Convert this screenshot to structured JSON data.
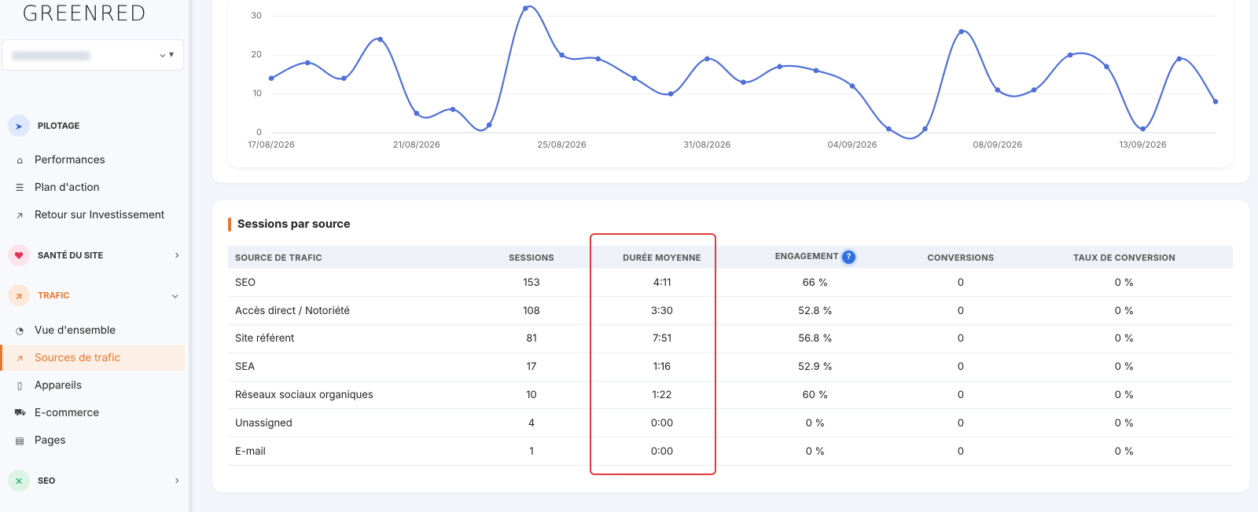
{
  "sidebar": {
    "logo": "GREENRED",
    "sections": [
      {
        "label": "PILOTAGE",
        "items": [
          "Performances",
          "Plan d'action",
          "Retour sur Investissement"
        ]
      },
      {
        "label": "SANTÉ DU SITE",
        "items": []
      },
      {
        "label": "TRAFIC",
        "items": [
          "Vue d'ensemble",
          "Sources de trafic",
          "Appareils",
          "E-commerce",
          "Pages"
        ]
      },
      {
        "label": "SEO",
        "items": []
      }
    ]
  },
  "chart_data": {
    "type": "line",
    "categories": [
      "17/08/2026",
      null,
      null,
      null,
      "21/08/2026",
      null,
      null,
      null,
      "25/08/2026",
      null,
      null,
      null,
      "31/08/2026",
      null,
      null,
      null,
      "04/09/2026",
      null,
      null,
      null,
      "08/09/2026",
      null,
      null,
      null,
      "13/09/2026",
      null,
      null
    ],
    "series": [
      {
        "color": "#4f6fd6",
        "values": [
          14,
          18,
          14,
          24,
          5,
          6,
          2,
          32,
          20,
          19,
          14,
          10,
          19,
          13,
          17,
          16,
          12,
          1,
          1,
          26,
          11,
          11,
          20,
          17,
          1,
          19,
          8
        ]
      }
    ],
    "ylim": [
      0,
      35
    ],
    "yticks": [
      0,
      10,
      20,
      30
    ],
    "grid": true
  },
  "table": {
    "title": "Sessions par source",
    "help": "?",
    "columns": [
      "SOURCE DE TRAFIC",
      "SESSIONS",
      "DURÉE MOYENNE",
      "ENGAGEMENT",
      "CONVERSIONS",
      "TAUX DE CONVERSION"
    ],
    "rows": [
      [
        "SEO",
        153,
        "4:11",
        "66 %",
        0,
        "0 %"
      ],
      [
        "Accès direct / Notoriété",
        108,
        "3:30",
        "52.8 %",
        0,
        "0 %"
      ],
      [
        "Site référent",
        81,
        "7:51",
        "56.8 %",
        0,
        "0 %"
      ],
      [
        "SEA",
        17,
        "1:16",
        "52.9 %",
        0,
        "0 %"
      ],
      [
        "Réseaux sociaux organiques",
        10,
        "1:22",
        "60 %",
        0,
        "0 %"
      ],
      [
        "Unassigned",
        4,
        "0:00",
        "0 %",
        0,
        "0 %"
      ],
      [
        "E-mail",
        1,
        "0:00",
        "0 %",
        0,
        "0 %"
      ]
    ]
  }
}
